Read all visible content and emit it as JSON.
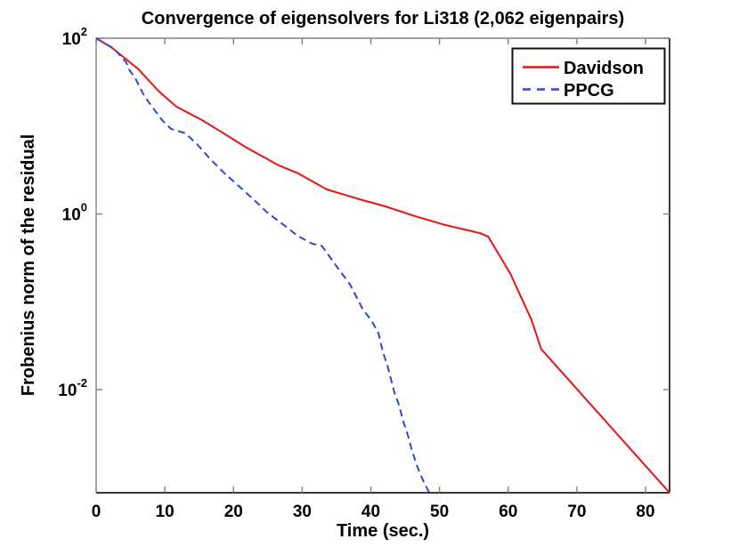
{
  "chart_data": {
    "type": "line",
    "title": "Convergence of eigensolvers for Li318 (2,062 eigenpairs)",
    "xlabel": "Time (sec.)",
    "ylabel": "Frobenius norm of the residual",
    "x_scale": "linear",
    "y_scale": "log",
    "xlim": [
      0,
      83.5
    ],
    "ylim": [
      0.00067,
      100
    ],
    "x_ticks": [
      0,
      10,
      20,
      30,
      40,
      50,
      60,
      70,
      80
    ],
    "y_tick_base": "10",
    "y_tick_exponents": [
      2,
      0,
      -2
    ],
    "grid": false,
    "legend_position": "top-right",
    "text_color": "#000000",
    "frame_color_top_left": "#848484",
    "frame_color_bottom_right": "#1a1a1a",
    "series": [
      {
        "name": "Davidson",
        "color": "#ee1111",
        "line_style": "solid",
        "line_width": 2,
        "points": [
          [
            0,
            100
          ],
          [
            2.2,
            79
          ],
          [
            5.2,
            51
          ],
          [
            6.1,
            45
          ],
          [
            9.1,
            25
          ],
          [
            11.7,
            16.6
          ],
          [
            15.4,
            11.7
          ],
          [
            18.2,
            8.6
          ],
          [
            21.7,
            5.8
          ],
          [
            26.5,
            3.6
          ],
          [
            29.4,
            2.9
          ],
          [
            33.6,
            1.9
          ],
          [
            37.9,
            1.5
          ],
          [
            42.1,
            1.22
          ],
          [
            46.5,
            0.94
          ],
          [
            50.8,
            0.75
          ],
          [
            56,
            0.6
          ],
          [
            57.1,
            0.55
          ],
          [
            60.3,
            0.21
          ],
          [
            63.4,
            0.062
          ],
          [
            64.8,
            0.029
          ],
          [
            83.5,
            0.00067
          ]
        ]
      },
      {
        "name": "PPCG",
        "color": "#3344d8",
        "line_style": "dashed",
        "line_width": 2,
        "dash": [
          8,
          5
        ],
        "points": [
          [
            0,
            100
          ],
          [
            2.6,
            76
          ],
          [
            4.4,
            53
          ],
          [
            4.8,
            44
          ],
          [
            5.7,
            35
          ],
          [
            7,
            22
          ],
          [
            8.3,
            16
          ],
          [
            9.6,
            11.7
          ],
          [
            10.9,
            9.3
          ],
          [
            13,
            8.3
          ],
          [
            14.8,
            6.1
          ],
          [
            16.5,
            4.3
          ],
          [
            18.7,
            2.9
          ],
          [
            20.7,
            2.1
          ],
          [
            23.3,
            1.37
          ],
          [
            24.9,
            1.04
          ],
          [
            27.5,
            0.73
          ],
          [
            29.4,
            0.56
          ],
          [
            31.4,
            0.46
          ],
          [
            32.9,
            0.43
          ],
          [
            34.9,
            0.26
          ],
          [
            37,
            0.156
          ],
          [
            38.8,
            0.083
          ],
          [
            40.1,
            0.061
          ],
          [
            41.1,
            0.044
          ],
          [
            41.8,
            0.026
          ],
          [
            42.4,
            0.019
          ],
          [
            43.4,
            0.0095
          ],
          [
            44.1,
            0.0067
          ],
          [
            44.7,
            0.0044
          ],
          [
            45.4,
            0.003
          ],
          [
            46,
            0.002
          ],
          [
            46.9,
            0.00125
          ],
          [
            47.6,
            0.00093
          ],
          [
            48.5,
            0.00067
          ]
        ]
      }
    ]
  }
}
